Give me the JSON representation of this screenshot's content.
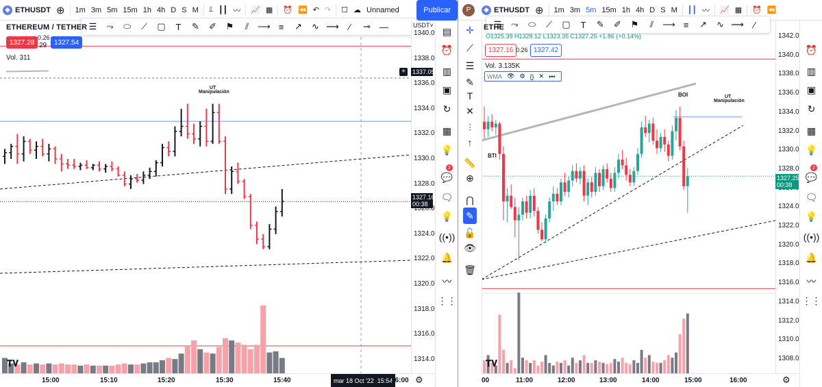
{
  "left": {
    "symbol": "ETHUSDT",
    "intervals": [
      "1m",
      "3m",
      "5m",
      "15m",
      "1h",
      "4h",
      "D",
      "S",
      "M"
    ],
    "active_interval": "",
    "layout_name": "Unnamed",
    "publish_label": "Publicar",
    "pair_title": "ETHEREUM / TETHER",
    "bid": "1327.28",
    "spread_top": "0.26",
    "spread_bottom": "29",
    "ask": "1327.54",
    "volume_label": "Vol. 311",
    "currency": "USDT˅",
    "price_ticks": [
      "1340.00",
      "1338.00",
      "1336.00",
      "1334.00",
      "1332.00",
      "1330.00",
      "1328.00",
      "1326.00",
      "1324.00",
      "1322.00",
      "1320.00",
      "1318.00",
      "1316.00",
      "1314.00"
    ],
    "crosshair_price": "1337.05",
    "last_price": "1327.16",
    "countdown": "00:38",
    "time_ticks": [
      "15:00",
      "15:10",
      "15:20",
      "15:30",
      "15:40"
    ],
    "cursor_time": "mar 18 Oct '22",
    "cursor_time2": "15:54",
    "axis_end_time": "16:00",
    "annotation_ut": "UT",
    "annotation_manip": "Manipulación",
    "colors": {
      "up": "#131722",
      "down": "#f23645",
      "vol_up": "#787b86",
      "vol_down": "#f7a1a8",
      "hline_red": "#f23645",
      "hline_blue": "#2962ff"
    }
  },
  "right": {
    "symbol": "ETHUSDT",
    "avatar_letter": "P",
    "intervals": [
      "1m",
      "3m",
      "5m",
      "15m",
      "1h",
      "4h",
      "D",
      "S",
      "M"
    ],
    "active_interval": "5m",
    "pair_title": "ETHE",
    "ohlc_line": "O1325.39 H1328.12 L1323.35 C1327.25 +1.86 (+0.14%)",
    "bid": "1327.16",
    "spread": "0.26",
    "ask": "1327.42",
    "volume_label": "Vol. 3.135K",
    "indicator": "WMA",
    "price_ticks": [
      "1342.00",
      "1340.00",
      "1338.00",
      "1336.00",
      "1334.00",
      "1332.00",
      "1330.00",
      "1328.00",
      "1326.00",
      "1324.00",
      "1322.00",
      "1320.00",
      "1318.00",
      "1316.00",
      "1314.00",
      "1312.00",
      "1310.00",
      "1308.00"
    ],
    "last_price": "1327.25",
    "countdown": "00:38",
    "time_ticks": [
      "00",
      "11:00",
      "12:00",
      "13:00",
      "14:00",
      "15:00",
      "16:00"
    ],
    "annotation_boi": "BOI",
    "annotation_bti": "BTI",
    "annotation_ut": "UT",
    "annotation_manip": "Manipulación",
    "badge_count": "2"
  }
}
